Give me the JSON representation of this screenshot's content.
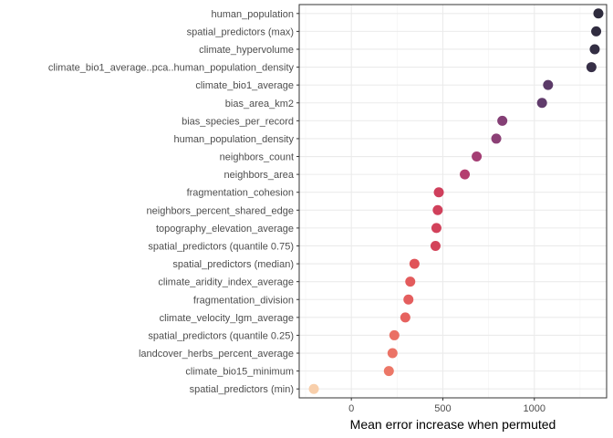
{
  "chart_data": {
    "type": "scatter",
    "orientation": "horizontal-dot-plot",
    "title": "",
    "xlabel": "Mean error increase when permuted",
    "ylabel": "",
    "xlim": [
      -285,
      1395
    ],
    "x_ticks": [
      0,
      500,
      1000
    ],
    "grid": true,
    "legend": "none",
    "points": [
      {
        "label": "human_population",
        "value": 1350,
        "color": "#2e2b3d"
      },
      {
        "label": "spatial_predictors (max)",
        "value": 1338,
        "color": "#302c40"
      },
      {
        "label": "climate_hypervolume",
        "value": 1330,
        "color": "#332e43"
      },
      {
        "label": "climate_bio1_average..pca..human_population_density",
        "value": 1312,
        "color": "#372f47"
      },
      {
        "label": "climate_bio1_average",
        "value": 1075,
        "color": "#5b3a68"
      },
      {
        "label": "bias_area_km2",
        "value": 1042,
        "color": "#613c6c"
      },
      {
        "label": "bias_species_per_record",
        "value": 825,
        "color": "#843f75"
      },
      {
        "label": "human_population_density",
        "value": 792,
        "color": "#8c4076"
      },
      {
        "label": "neighbors_count",
        "value": 685,
        "color": "#a43e74"
      },
      {
        "label": "neighbors_area",
        "value": 620,
        "color": "#b43f6f"
      },
      {
        "label": "fragmentation_cohesion",
        "value": 478,
        "color": "#cf3f5c"
      },
      {
        "label": "neighbors_percent_shared_edge",
        "value": 472,
        "color": "#d0405b"
      },
      {
        "label": "topography_elevation_average",
        "value": 465,
        "color": "#d2425b"
      },
      {
        "label": "spatial_predictors (quantile 0.75)",
        "value": 460,
        "color": "#d3445a"
      },
      {
        "label": "spatial_predictors (median)",
        "value": 345,
        "color": "#e05358"
      },
      {
        "label": "climate_aridity_index_average",
        "value": 322,
        "color": "#e35b5c"
      },
      {
        "label": "fragmentation_division",
        "value": 312,
        "color": "#e45e5e"
      },
      {
        "label": "climate_velocity_lgm_average",
        "value": 295,
        "color": "#e6625f"
      },
      {
        "label": "spatial_predictors (quantile 0.25)",
        "value": 235,
        "color": "#ea7064"
      },
      {
        "label": "landcover_herbs_percent_average",
        "value": 225,
        "color": "#eb7366"
      },
      {
        "label": "climate_bio15_minimum",
        "value": 205,
        "color": "#ec7767"
      },
      {
        "label": "spatial_predictors (min)",
        "value": -205,
        "color": "#f8cfab"
      }
    ]
  }
}
